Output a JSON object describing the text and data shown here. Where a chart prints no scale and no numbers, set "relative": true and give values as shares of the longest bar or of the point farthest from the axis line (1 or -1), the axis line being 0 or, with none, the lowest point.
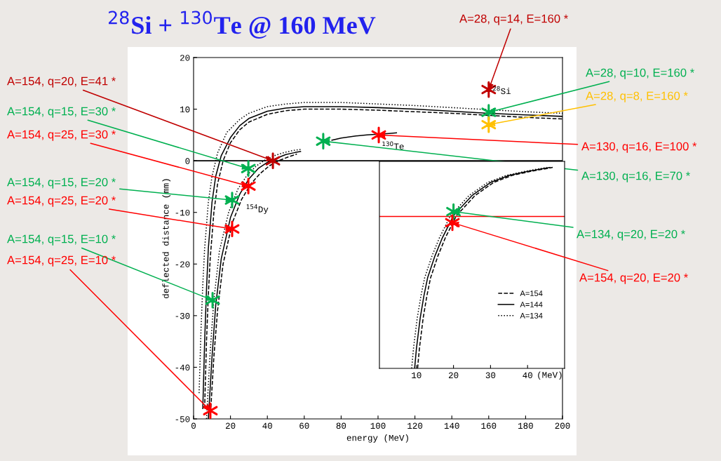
{
  "chart_data": [
    {
      "type": "line",
      "title": "$^{28}$Si + $^{130}$Te @ 160 MeV",
      "xlabel": "energy (MeV)",
      "ylabel": "deflected distance (mm)",
      "xlim": [
        0,
        200
      ],
      "ylim": [
        -50,
        20
      ],
      "xticks": [
        0,
        20,
        40,
        60,
        80,
        100,
        120,
        140,
        160,
        180,
        200
      ],
      "yticks": [
        -50,
        -40,
        -30,
        -20,
        -10,
        0,
        10,
        20
      ],
      "ref_lines": [
        {
          "axis": "y",
          "value": 0,
          "color": "#000000"
        }
      ],
      "series": [
        {
          "line_style": "solid",
          "color": "#000000",
          "x": [
            5,
            6,
            7,
            8,
            10,
            12,
            15,
            20,
            25,
            30,
            40,
            50,
            60,
            80,
            100,
            120,
            140,
            160,
            180,
            200
          ],
          "values": [
            -48,
            -35,
            -25,
            -17,
            -8,
            -3,
            1,
            4.5,
            6.8,
            8.2,
            9.6,
            10.2,
            10.5,
            10.5,
            10.3,
            10,
            9.6,
            9.2,
            8.9,
            8.6
          ]
        },
        {
          "line_style": "dashed",
          "color": "#000000",
          "x": [
            6,
            7,
            8,
            9,
            11,
            13,
            16,
            20,
            25,
            30,
            40,
            50,
            60,
            80,
            100,
            120,
            140,
            160,
            180,
            200
          ],
          "values": [
            -48,
            -35,
            -26,
            -19,
            -10,
            -4.5,
            0,
            3.5,
            6,
            7.5,
            9,
            9.7,
            10,
            10,
            9.8,
            9.5,
            9.2,
            8.8,
            8.4,
            8.1
          ]
        },
        {
          "line_style": "dotted",
          "color": "#000000",
          "x": [
            3,
            4,
            5,
            6,
            8,
            10,
            13,
            18,
            25,
            30,
            40,
            50,
            60,
            80,
            100,
            120,
            140,
            160,
            180,
            200
          ],
          "values": [
            -45,
            -33,
            -24,
            -17,
            -8,
            -3,
            1.5,
            5.5,
            8,
            9.2,
            10.5,
            11,
            11.3,
            11.3,
            11,
            10.7,
            10.3,
            9.9,
            9.5,
            9.2
          ]
        },
        {
          "line_style": "solid",
          "color": "#000000",
          "x": [
            8,
            10,
            12,
            15,
            20,
            25,
            30,
            35,
            40,
            45,
            50,
            55,
            58
          ],
          "values": [
            -50,
            -38,
            -28,
            -19,
            -11,
            -6.5,
            -3.5,
            -1.5,
            -0.3,
            0.5,
            1.2,
            1.6,
            1.8
          ]
        },
        {
          "line_style": "dashed",
          "color": "#000000",
          "x": [
            9,
            11,
            13,
            16,
            21,
            26,
            31,
            36,
            41,
            46,
            51,
            56
          ],
          "values": [
            -50,
            -38,
            -29,
            -20,
            -12,
            -7.5,
            -4.5,
            -2.5,
            -1,
            0,
            0.7,
            1.3
          ]
        },
        {
          "line_style": "dotted",
          "color": "#000000",
          "x": [
            7,
            9,
            11,
            14,
            19,
            24,
            29,
            34,
            39,
            44,
            49,
            54,
            58
          ],
          "values": [
            -50,
            -37,
            -27,
            -17.5,
            -10,
            -5.5,
            -2.8,
            -1,
            0.2,
            1,
            1.6,
            2,
            2.2
          ]
        },
        {
          "line_style": "solid",
          "color": "#000000",
          "x": [
            75,
            80,
            88,
            94,
            106,
            110
          ],
          "values": [
            4,
            4.4,
            4.8,
            5,
            5.3,
            5.4
          ]
        },
        {
          "type": "scatter",
          "marker": "cross",
          "color": "#ff0000",
          "x": [
            29.7,
            20.9,
            9.1,
            100.4
          ],
          "values": [
            -4.9,
            -13.2,
            -48.4,
            5
          ]
        },
        {
          "type": "scatter",
          "marker": "cross",
          "color": "#00b050",
          "x": [
            29.7,
            20.9,
            10.3,
            160,
            70.3
          ],
          "values": [
            -1.5,
            -7.6,
            -27,
            9.4,
            3.8
          ]
        },
        {
          "type": "scatter",
          "marker": "cross",
          "color": "#ffc000",
          "x": [
            160
          ],
          "values": [
            7
          ]
        },
        {
          "type": "scatter",
          "marker": "cross",
          "color": "#c00000",
          "x": [
            43,
            160
          ],
          "values": [
            0,
            13.8
          ]
        }
      ],
      "annotations": [
        {
          "text": "A=154, q=20, E=41 *",
          "x": 43,
          "y": 0
        },
        {
          "text": "A=154, q=15, E=30 *",
          "x": 29.7,
          "y": -1.5
        },
        {
          "text": "A=154, q=25, E=30 *",
          "x": 29.7,
          "y": -4.9
        },
        {
          "text": "A=154, q=15, E=20 *",
          "x": 20.9,
          "y": -7.6
        },
        {
          "text": "A=154, q=25, E=20 *",
          "x": 20.9,
          "y": -13.2
        },
        {
          "text": "A=154, q=15, E=10 *",
          "x": 10.3,
          "y": -27
        },
        {
          "text": "A=154, q=25, E=10 *",
          "x": 9.1,
          "y": -48.4
        },
        {
          "text": "A=28, q=14, E=160 *",
          "x": 160,
          "y": 13.8
        },
        {
          "text": "A=28, q=10, E=160 *",
          "x": 160,
          "y": 9.4
        },
        {
          "text": "A=28, q=8, E=160 *",
          "x": 160,
          "y": 7
        },
        {
          "text": "A=130, q=16, E=100 *",
          "x": 100.4,
          "y": 5
        },
        {
          "text": "A=130, q=16, E=70 *",
          "x": 70.3,
          "y": 3.8
        },
        "$^{154}$Dy",
        "$^{130}$Te",
        "$^{28}$Si"
      ]
    },
    {
      "type": "line",
      "relative": true,
      "xlabel": "(MeV)",
      "xlim": [
        0,
        50
      ],
      "xticks": [
        10,
        20,
        30,
        40
      ],
      "legend": "bottom right",
      "ref_lines": [
        {
          "axis": "y",
          "value": 0.756,
          "color": "#ff0000"
        }
      ],
      "series": [
        {
          "name": "A=154",
          "line_style": "dashed",
          "color": "#000000",
          "x": [
            10.3,
            10.8,
            11.8,
            12.8,
            13.8,
            15.8,
            17.8,
            20.8,
            25.8,
            30.8,
            35.8,
            40.8,
            46.8
          ],
          "values": [
            0,
            0.1,
            0.25,
            0.36,
            0.45,
            0.56,
            0.65,
            0.76,
            0.86,
            0.925,
            0.96,
            0.98,
            1
          ]
        },
        {
          "name": "A=144",
          "line_style": "solid",
          "color": "#000000",
          "x": [
            9.5,
            10,
            11,
            12,
            13,
            15,
            17,
            20,
            25,
            30,
            35,
            40,
            46
          ],
          "values": [
            0,
            0.1,
            0.25,
            0.36,
            0.45,
            0.56,
            0.65,
            0.76,
            0.86,
            0.925,
            0.96,
            0.98,
            1
          ]
        },
        {
          "name": "A=134",
          "line_style": "dotted",
          "color": "#000000",
          "x": [
            8.7,
            9.2,
            10.2,
            11.2,
            12.2,
            14.2,
            16.2,
            19.2,
            24.2,
            29.2,
            34.2,
            39.2,
            45.2
          ],
          "values": [
            0,
            0.1,
            0.25,
            0.36,
            0.45,
            0.56,
            0.65,
            0.76,
            0.86,
            0.925,
            0.96,
            0.98,
            1
          ]
        },
        {
          "type": "scatter",
          "marker": "cross",
          "color": "#00b050",
          "x": [
            20
          ],
          "values": [
            0.78
          ]
        },
        {
          "type": "scatter",
          "marker": "cross",
          "color": "#ff0000",
          "x": [
            19.7
          ],
          "values": [
            0.725
          ]
        }
      ],
      "annotations": [
        {
          "text": "A=134, q=20, E=20 *",
          "x": 20,
          "y": 0.78
        },
        {
          "text": "A=154, q=20, E=20 *",
          "x": 19.7,
          "y": 0.725
        }
      ]
    }
  ]
}
